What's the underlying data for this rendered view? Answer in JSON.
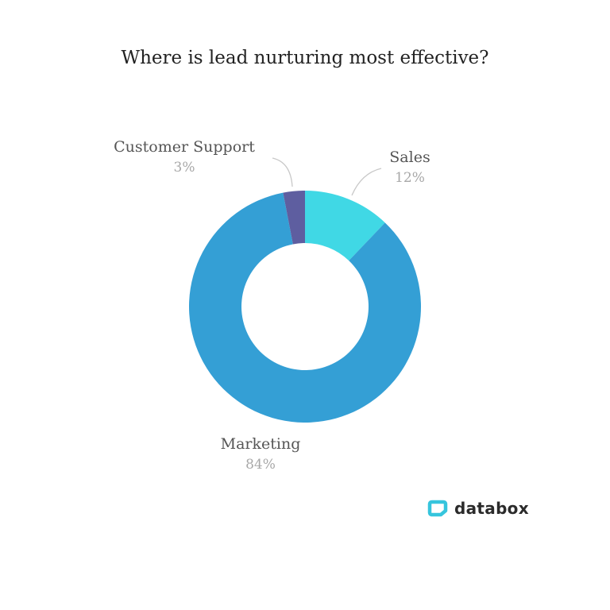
{
  "title": "Where is lead nurturing most effective?",
  "chart_data": {
    "type": "pie",
    "variant": "donut",
    "title": "Where is lead nurturing most effective?",
    "categories": [
      "Sales",
      "Marketing",
      "Customer Support"
    ],
    "values": [
      12,
      84,
      3
    ],
    "unit": "%",
    "colors": [
      "#40d8e5",
      "#349fd5",
      "#5e5ea0"
    ],
    "start_angle": "12 o'clock, clockwise",
    "legend": "none (inline callout labels)"
  },
  "labels": {
    "customer_support": {
      "name": "Customer Support",
      "pct": "3%"
    },
    "sales": {
      "name": "Sales",
      "pct": "12%"
    },
    "marketing": {
      "name": "Marketing",
      "pct": "84%"
    }
  },
  "brand": {
    "name": "databox",
    "color": "#36c5dd"
  }
}
